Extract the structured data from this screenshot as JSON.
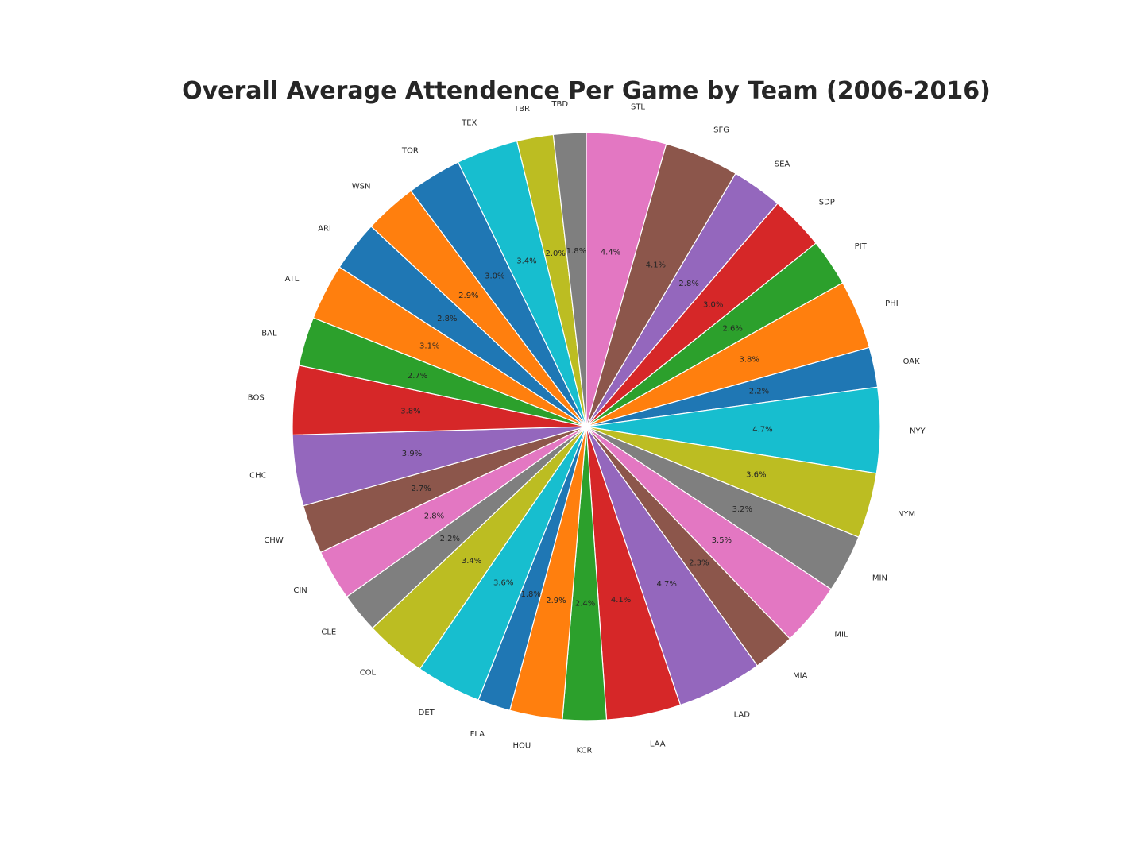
{
  "chart_data": {
    "type": "pie",
    "title": "Overall Average Attendence Per Game by Team (2006-2016)",
    "start_angle_deg": 90,
    "direction": "clockwise",
    "slices": [
      {
        "label": "STL",
        "value": 4.4,
        "pct_label": "4.4%",
        "color": "#e377c2"
      },
      {
        "label": "SFG",
        "value": 4.1,
        "pct_label": "4.1%",
        "color": "#8c564b"
      },
      {
        "label": "SEA",
        "value": 2.8,
        "pct_label": "2.8%",
        "color": "#9467bd"
      },
      {
        "label": "SDP",
        "value": 3.0,
        "pct_label": "3.0%",
        "color": "#d62728"
      },
      {
        "label": "PIT",
        "value": 2.6,
        "pct_label": "2.6%",
        "color": "#2ca02c"
      },
      {
        "label": "PHI",
        "value": 3.8,
        "pct_label": "3.8%",
        "color": "#ff7f0e"
      },
      {
        "label": "OAK",
        "value": 2.2,
        "pct_label": "2.2%",
        "color": "#1f77b4"
      },
      {
        "label": "NYY",
        "value": 4.7,
        "pct_label": "4.7%",
        "color": "#17becf"
      },
      {
        "label": "NYM",
        "value": 3.6,
        "pct_label": "3.6%",
        "color": "#bcbd22"
      },
      {
        "label": "MIN",
        "value": 3.2,
        "pct_label": "3.2%",
        "color": "#7f7f7f"
      },
      {
        "label": "MIL",
        "value": 3.5,
        "pct_label": "3.5%",
        "color": "#e377c2"
      },
      {
        "label": "MIA",
        "value": 2.3,
        "pct_label": "2.3%",
        "color": "#8c564b"
      },
      {
        "label": "LAD",
        "value": 4.7,
        "pct_label": "4.7%",
        "color": "#9467bd"
      },
      {
        "label": "LAA",
        "value": 4.1,
        "pct_label": "4.1%",
        "color": "#d62728"
      },
      {
        "label": "KCR",
        "value": 2.4,
        "pct_label": "2.4%",
        "color": "#2ca02c"
      },
      {
        "label": "HOU",
        "value": 2.9,
        "pct_label": "2.9%",
        "color": "#ff7f0e"
      },
      {
        "label": "FLA",
        "value": 1.8,
        "pct_label": "1.8%",
        "color": "#1f77b4"
      },
      {
        "label": "DET",
        "value": 3.6,
        "pct_label": "3.6%",
        "color": "#17becf"
      },
      {
        "label": "COL",
        "value": 3.4,
        "pct_label": "3.4%",
        "color": "#bcbd22"
      },
      {
        "label": "CLE",
        "value": 2.2,
        "pct_label": "2.2%",
        "color": "#7f7f7f"
      },
      {
        "label": "CIN",
        "value": 2.8,
        "pct_label": "2.8%",
        "color": "#e377c2"
      },
      {
        "label": "CHW",
        "value": 2.7,
        "pct_label": "2.7%",
        "color": "#8c564b"
      },
      {
        "label": "CHC",
        "value": 3.9,
        "pct_label": "3.9%",
        "color": "#9467bd"
      },
      {
        "label": "BOS",
        "value": 3.8,
        "pct_label": "3.8%",
        "color": "#d62728"
      },
      {
        "label": "BAL",
        "value": 2.7,
        "pct_label": "2.7%",
        "color": "#2ca02c"
      },
      {
        "label": "ATL",
        "value": 3.1,
        "pct_label": "3.1%",
        "color": "#ff7f0e"
      },
      {
        "label": "ARI",
        "value": 2.8,
        "pct_label": "2.8%",
        "color": "#1f77b4"
      },
      {
        "label": "WSN",
        "value": 2.9,
        "pct_label": "2.9%",
        "color": "#ff7f0e"
      },
      {
        "label": "TOR",
        "value": 3.0,
        "pct_label": "3.0%",
        "color": "#1f77b4"
      },
      {
        "label": "TEX",
        "value": 3.4,
        "pct_label": "3.4%",
        "color": "#17becf"
      },
      {
        "label": "TBR",
        "value": 2.0,
        "pct_label": "2.0%",
        "color": "#bcbd22"
      },
      {
        "label": "TBD",
        "value": 1.8,
        "pct_label": "1.8%",
        "color": "#7f7f7f"
      }
    ]
  }
}
